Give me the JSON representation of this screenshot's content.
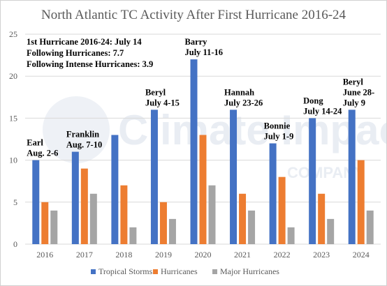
{
  "chart_data": {
    "type": "bar",
    "title": "North Atlantic  TC Activity After First Hurricane 2016-24",
    "categories": [
      "2016",
      "2017",
      "2018",
      "2019",
      "2020",
      "2021",
      "2022",
      "2023",
      "2024"
    ],
    "series": [
      {
        "name": "Tropical Storms",
        "color": "#4472c4",
        "values": [
          10,
          11,
          13,
          16,
          22,
          16,
          12,
          15,
          16
        ]
      },
      {
        "name": "Hurricanes",
        "color": "#ed7d31",
        "values": [
          5,
          9,
          7,
          5,
          13,
          6,
          8,
          6,
          10
        ]
      },
      {
        "name": "Major Hurricanes",
        "color": "#a5a5a5",
        "values": [
          4,
          6,
          2,
          3,
          7,
          4,
          2,
          3,
          4
        ]
      }
    ],
    "ylim": [
      0,
      25
    ],
    "yticks": [
      0,
      5,
      10,
      15,
      20,
      25
    ],
    "grid": true,
    "legend_position": "bottom",
    "summary_lines": [
      "1st Hurricane 2016-24: July 14",
      "Following Hurricanes: 7.7",
      "Following Intense Hurricanes: 3.9"
    ],
    "bar_labels": [
      [
        "Earl",
        "Aug. 2-6"
      ],
      [
        "Franklin",
        "Aug. 7-10"
      ],
      [],
      [
        "Beryl",
        "July 4-15"
      ],
      [
        "Barry",
        "July 11-16"
      ],
      [
        "Hannah",
        "July 23-26"
      ],
      [
        "Bonnie",
        "July 1-9"
      ],
      [
        "Dong",
        "July 14-24"
      ],
      [
        "Beryl",
        "June 28-",
        "July 9"
      ]
    ],
    "watermark": [
      "Climate Impact",
      "COMPANY"
    ]
  }
}
